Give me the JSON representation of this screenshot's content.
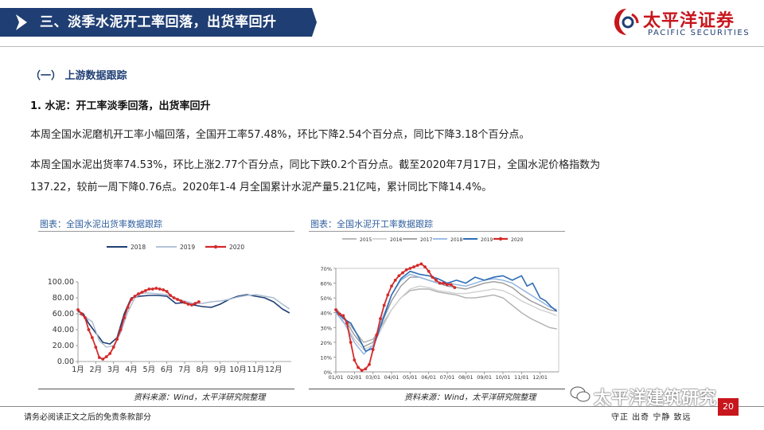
{
  "header": {
    "title": "三、淡季水泥开工率回落，出货率回升",
    "logo_cn": "太平洋证券",
    "logo_en": "PACIFIC SECURITIES"
  },
  "content": {
    "section": "（一） 上游数据跟踪",
    "subheading": "1. 水泥：开工率淡季回落，出货率回升",
    "para1": "本周全国水泥磨机开工率小幅回落，全国开工率57.48%，环比下降2.54个百分点，同比下降3.18个百分点。",
    "para2_line1": "本周全国水泥出货率74.53%，环比上涨2.77个百分点，同比下跌0.2个百分点。截至2020年7月17日，全国水泥价格指数为",
    "para2_line2": "137.22，较前一周下降0.76点。2020年1-4 月全国累计水泥产量5.21亿吨，累计同比下降14.4%。"
  },
  "charts_meta": {
    "left_title": "图表：全国水泥出货率数据跟踪",
    "right_title": "图表：全国水泥开工率数据跟踪",
    "left_source": "资料来源：Wind，太平洋研究院整理",
    "right_source": "资料来源：Wind，太平洋研究院整理"
  },
  "chart_data": [
    {
      "type": "line",
      "title": "图表：全国水泥出货率数据跟踪",
      "ylim": [
        0,
        100
      ],
      "y_ticks": [
        "100.00",
        "80.00",
        "60.00",
        "40.00",
        "20.00",
        "0.00"
      ],
      "x_ticks": [
        "1月",
        "2月",
        "3月",
        "4月",
        "5月",
        "6月",
        "7月",
        "8月",
        "9月",
        "10月",
        "11月",
        "12月"
      ],
      "x_range": [
        1,
        13
      ],
      "legend_position": "top",
      "series": [
        {
          "name": "2018",
          "color": "#1f3e73",
          "width": 1.6,
          "markers": false,
          "x": [
            1.0,
            1.3,
            1.6,
            2.0,
            2.4,
            2.8,
            3.2,
            3.6,
            4.0,
            4.5,
            5.0,
            5.5,
            6.0,
            6.5,
            7.0,
            7.5,
            8.0,
            8.5,
            9.0,
            9.5,
            10.0,
            10.5,
            11.0,
            11.5,
            12.0,
            12.5,
            12.9
          ],
          "y": [
            63,
            60,
            48,
            36,
            24,
            22,
            30,
            60,
            80,
            82,
            83,
            83,
            82,
            73,
            74,
            71,
            69,
            68,
            72,
            78,
            82,
            84,
            82,
            80,
            75,
            66,
            61
          ]
        },
        {
          "name": "2019",
          "color": "#a9bcd2",
          "width": 1.4,
          "markers": false,
          "x": [
            1.0,
            1.4,
            1.8,
            2.2,
            2.6,
            3.0,
            3.4,
            3.8,
            4.2,
            4.6,
            5.0,
            5.5,
            6.0,
            6.5,
            7.0,
            7.5,
            8.0,
            8.5,
            9.0,
            9.5,
            10.0,
            10.5,
            11.0,
            11.5,
            12.0,
            12.5,
            12.9
          ],
          "y": [
            60,
            56,
            50,
            26,
            18,
            20,
            36,
            62,
            80,
            86,
            86,
            85,
            84,
            79,
            76,
            73,
            73,
            75,
            76,
            78,
            81,
            83,
            84,
            82,
            80,
            72,
            66
          ]
        },
        {
          "name": "2020",
          "color": "#d42a2a",
          "width": 1.8,
          "markers": true,
          "x": [
            1.0,
            1.2,
            1.4,
            1.6,
            1.8,
            2.0,
            2.2,
            2.4,
            2.6,
            2.8,
            3.0,
            3.2,
            3.4,
            3.6,
            3.8,
            4.0,
            4.2,
            4.4,
            4.6,
            4.8,
            5.0,
            5.2,
            5.4,
            5.6,
            5.8,
            6.0,
            6.2,
            6.4,
            6.6,
            6.8,
            7.0,
            7.2,
            7.4,
            7.6,
            7.8
          ],
          "y": [
            65,
            60,
            55,
            40,
            30,
            18,
            5,
            3,
            6,
            10,
            18,
            28,
            40,
            55,
            68,
            78,
            82,
            85,
            87,
            89,
            91,
            91,
            92,
            91,
            90,
            88,
            83,
            80,
            78,
            76,
            74,
            72,
            71,
            73,
            75
          ]
        }
      ]
    },
    {
      "type": "line",
      "title": "图表：全国水泥开工率数据跟踪",
      "ylim": [
        0,
        70
      ],
      "y_ticks": [
        "70%",
        "60%",
        "50%",
        "40%",
        "30%",
        "20%",
        "10%",
        "0%"
      ],
      "x_ticks": [
        "01/01",
        "02/01",
        "03/01",
        "04/01",
        "05/01",
        "06/01",
        "07/01",
        "08/01",
        "09/01",
        "10/01",
        "11/01",
        "12/01"
      ],
      "x_range": [
        1,
        13
      ],
      "legend_position": "top",
      "series": [
        {
          "name": "2015",
          "color": "#b0b0b0",
          "width": 1.4,
          "markers": false,
          "x": [
            1.0,
            1.5,
            2.0,
            2.5,
            3.0,
            3.5,
            4.0,
            4.5,
            5.0,
            5.5,
            6.0,
            6.5,
            7.0,
            7.5,
            8.0,
            8.5,
            9.0,
            9.5,
            10.0,
            10.5,
            11.0,
            11.5,
            12.0,
            12.5,
            12.9
          ],
          "y": [
            43,
            36,
            28,
            20,
            22,
            32,
            42,
            50,
            55,
            56,
            56,
            54,
            53,
            52,
            50,
            50,
            51,
            52,
            50,
            45,
            40,
            36,
            33,
            30,
            29
          ]
        },
        {
          "name": "2016",
          "color": "#d0d0d0",
          "width": 1.4,
          "markers": false,
          "x": [
            1.0,
            1.5,
            2.0,
            2.5,
            3.0,
            3.5,
            4.0,
            4.5,
            5.0,
            5.5,
            6.0,
            6.5,
            7.0,
            7.5,
            8.0,
            8.5,
            9.0,
            9.5,
            10.0,
            10.5,
            11.0,
            11.5,
            12.0,
            12.5,
            12.9
          ],
          "y": [
            40,
            33,
            22,
            15,
            18,
            30,
            42,
            50,
            56,
            58,
            57,
            55,
            54,
            53,
            53,
            54,
            55,
            56,
            55,
            52,
            48,
            45,
            42,
            40,
            38
          ]
        },
        {
          "name": "2017",
          "color": "#9a9a9a",
          "width": 1.4,
          "markers": false,
          "x": [
            1.0,
            1.5,
            2.0,
            2.5,
            3.0,
            3.5,
            4.0,
            4.5,
            5.0,
            5.5,
            6.0,
            6.5,
            7.0,
            7.5,
            8.0,
            8.5,
            9.0,
            9.5,
            10.0,
            10.5,
            11.0,
            11.5,
            12.0,
            12.5,
            12.9
          ],
          "y": [
            41,
            35,
            25,
            17,
            20,
            34,
            48,
            58,
            64,
            64,
            62,
            60,
            58,
            57,
            56,
            58,
            60,
            61,
            60,
            57,
            52,
            48,
            45,
            42,
            41
          ]
        },
        {
          "name": "2018",
          "color": "#8fb3e0",
          "width": 1.4,
          "markers": false,
          "x": [
            1.0,
            1.5,
            2.0,
            2.5,
            3.0,
            3.5,
            4.0,
            4.5,
            5.0,
            5.5,
            6.0,
            6.5,
            7.0,
            7.5,
            8.0,
            8.5,
            9.0,
            9.5,
            10.0,
            10.5,
            11.0,
            11.5,
            12.0,
            12.5,
            12.9
          ],
          "y": [
            40,
            32,
            20,
            12,
            18,
            36,
            52,
            62,
            66,
            64,
            62,
            60,
            60,
            59,
            58,
            60,
            62,
            63,
            62,
            60,
            56,
            52,
            48,
            44,
            42
          ]
        },
        {
          "name": "2019",
          "color": "#2e6db4",
          "width": 1.6,
          "markers": false,
          "x": [
            1.0,
            1.4,
            1.8,
            2.2,
            2.6,
            3.0,
            3.5,
            4.0,
            4.5,
            5.0,
            5.5,
            6.0,
            6.5,
            7.0,
            7.5,
            8.0,
            8.5,
            9.0,
            9.5,
            10.0,
            10.5,
            11.0,
            11.3,
            11.6,
            12.0,
            12.3,
            12.6,
            12.9
          ],
          "y": [
            41,
            36,
            33,
            24,
            14,
            16,
            34,
            52,
            63,
            68,
            66,
            65,
            63,
            60,
            62,
            60,
            64,
            62,
            64,
            65,
            62,
            65,
            58,
            60,
            50,
            48,
            44,
            41
          ]
        },
        {
          "name": "2020",
          "color": "#d42a2a",
          "width": 1.8,
          "markers": true,
          "x": [
            1.0,
            1.2,
            1.4,
            1.6,
            1.8,
            2.0,
            2.2,
            2.4,
            2.6,
            2.8,
            3.0,
            3.2,
            3.4,
            3.6,
            3.8,
            4.0,
            4.2,
            4.4,
            4.6,
            4.8,
            5.0,
            5.2,
            5.4,
            5.6,
            5.8,
            6.0,
            6.2,
            6.4,
            6.6,
            6.8,
            7.0,
            7.2,
            7.4
          ],
          "y": [
            42,
            39,
            38,
            33,
            20,
            8,
            3,
            1,
            2,
            5,
            15,
            25,
            36,
            45,
            52,
            58,
            62,
            65,
            67,
            69,
            70,
            71,
            72,
            73,
            71,
            68,
            64,
            62,
            60,
            60,
            59,
            59,
            57
          ]
        }
      ]
    }
  ],
  "footer": {
    "left": "请务必阅读正文之后的免责条款部分",
    "right": "守正 出奇 宁静 致远",
    "page": "20",
    "watermark": "太平洋建筑研究"
  }
}
